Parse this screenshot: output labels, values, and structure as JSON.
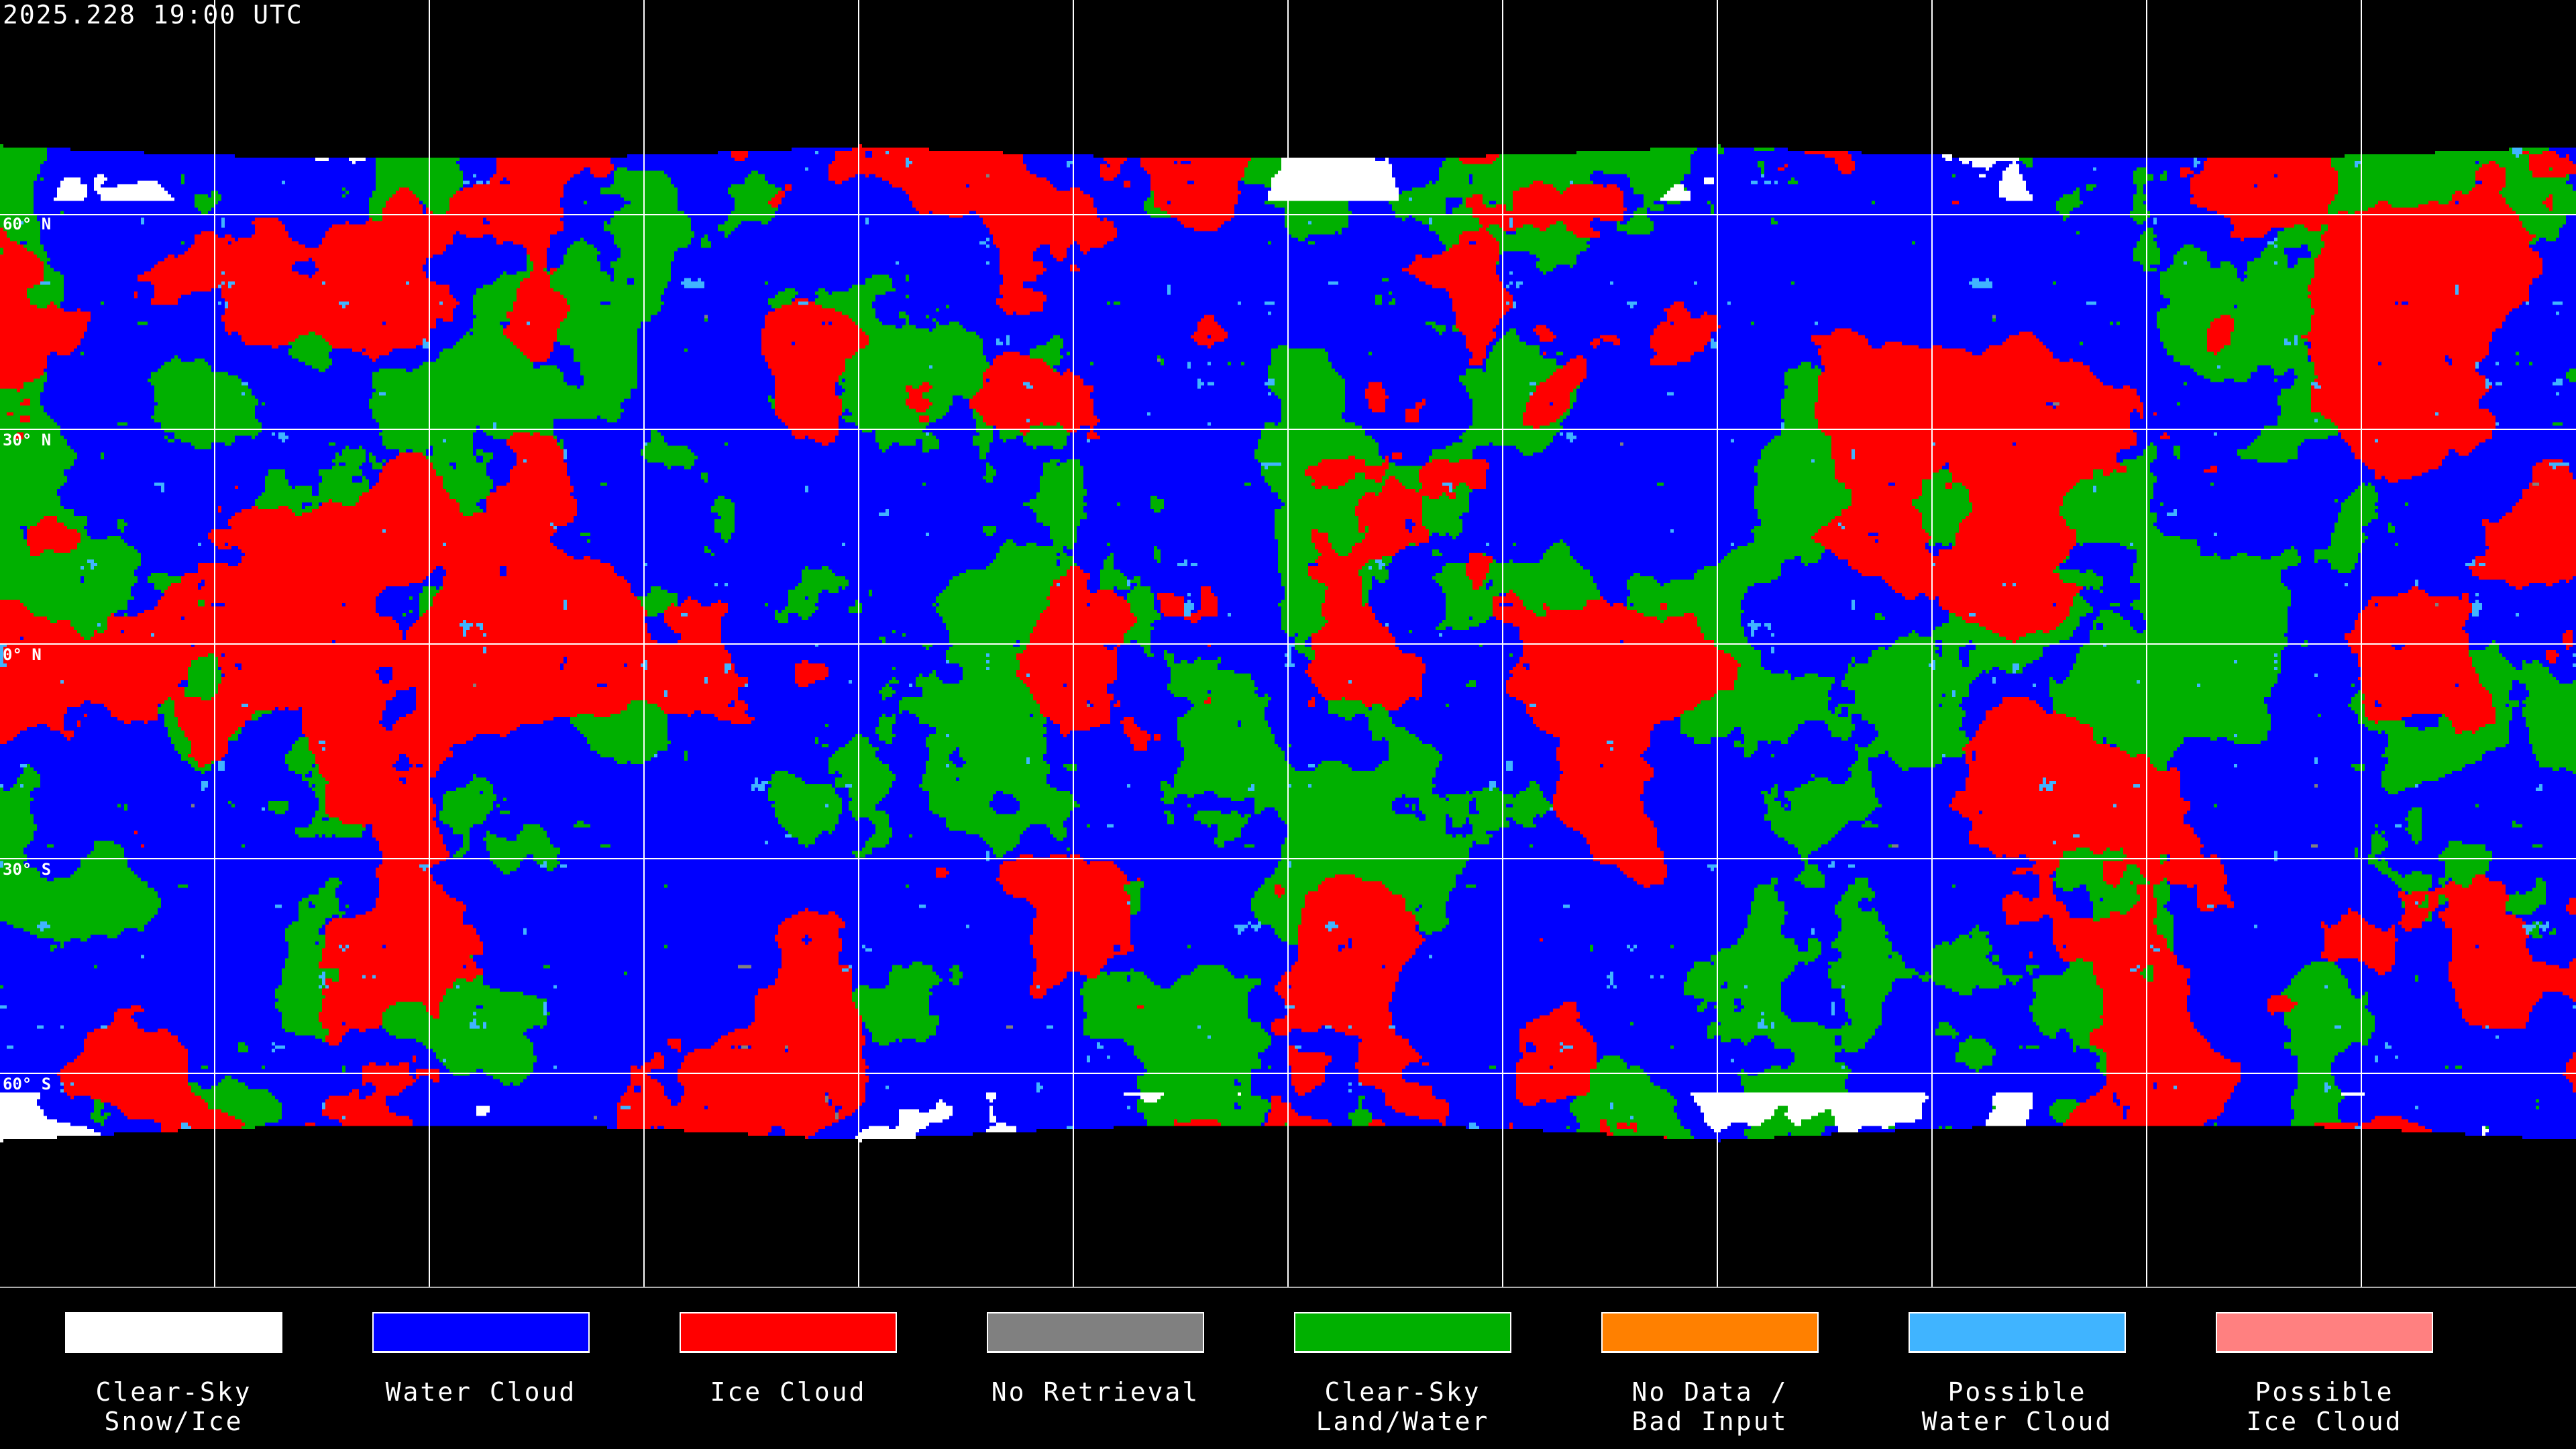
{
  "title": "2025.228 19:00 UTC",
  "lat_labels": [
    "60° N",
    "30° N",
    "0° N",
    "30° S",
    "60° S"
  ],
  "colors": {
    "clear_snow": "#ffffff",
    "water_cloud": "#0000ff",
    "ice_cloud": "#ff0000",
    "no_retrieval": "#808080",
    "clear_land_water": "#00b000",
    "no_data": "#ff8000",
    "possible_water": "#40b4ff",
    "possible_ice": "#ff8080",
    "background": "#000000",
    "grid": "#ffffff"
  },
  "legend": [
    {
      "label": "Clear-Sky\nSnow/Ice",
      "color": "#ffffff"
    },
    {
      "label": "Water Cloud",
      "color": "#0000ff"
    },
    {
      "label": "Ice Cloud",
      "color": "#ff0000"
    },
    {
      "label": "No Retrieval",
      "color": "#808080"
    },
    {
      "label": "Clear-Sky\nLand/Water",
      "color": "#00b000"
    },
    {
      "label": "No Data /\nBad Input",
      "color": "#ff8000"
    },
    {
      "label": "Possible\nWater Cloud",
      "color": "#40b4ff"
    },
    {
      "label": "Possible\nIce Cloud",
      "color": "#ff8080"
    }
  ]
}
